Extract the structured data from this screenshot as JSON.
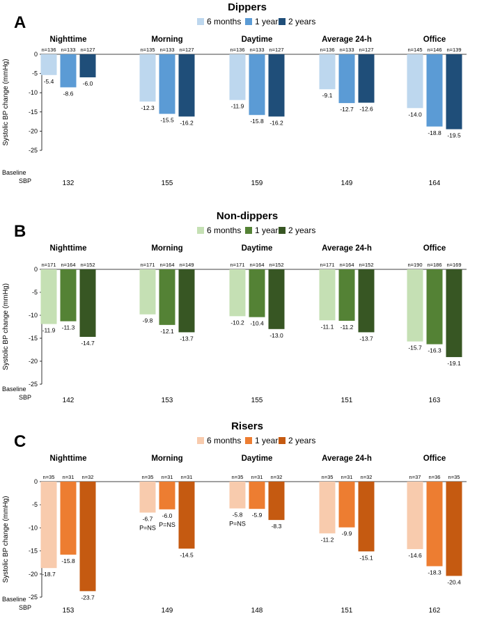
{
  "chart_data": [
    {
      "type": "bar",
      "panel": "A",
      "title": "Dippers",
      "ylabel": "Systolic BP change (mmHg)",
      "ylim": [
        -25,
        0
      ],
      "yticks": [
        "0",
        "-5",
        "-10",
        "-15",
        "-20",
        "-25"
      ],
      "legend": [
        "6 months",
        "1 year",
        "2 years"
      ],
      "colors": [
        "#bdd7ee",
        "#5b9bd5",
        "#1f4e79"
      ],
      "baseline_label": [
        "Baseline",
        "SBP"
      ],
      "groups": [
        {
          "label": "Nighttime",
          "n": [
            "n=136",
            "n=133",
            "n=127"
          ],
          "values": [
            -5.4,
            -8.6,
            -6.0
          ],
          "labels": [
            "-5.4",
            "-8.6",
            "-6.0"
          ],
          "baseline": "132"
        },
        {
          "label": "Morning",
          "n": [
            "n=135",
            "n=133",
            "n=127"
          ],
          "values": [
            -12.3,
            -15.5,
            -16.2
          ],
          "labels": [
            "-12.3",
            "-15.5",
            "-16.2"
          ],
          "baseline": "155"
        },
        {
          "label": "Daytime",
          "n": [
            "n=136",
            "n=133",
            "n=127"
          ],
          "values": [
            -11.9,
            -15.8,
            -16.2
          ],
          "labels": [
            "-11.9",
            "-15.8",
            "-16.2"
          ],
          "baseline": "159"
        },
        {
          "label": "Average 24-h",
          "n": [
            "n=136",
            "n=133",
            "n=127"
          ],
          "values": [
            -9.1,
            -12.7,
            -12.6
          ],
          "labels": [
            "-9.1",
            "-12.7",
            "-12.6"
          ],
          "baseline": "149"
        },
        {
          "label": "Office",
          "n": [
            "n=145",
            "n=146",
            "n=139"
          ],
          "values": [
            -14.0,
            -18.8,
            -19.5
          ],
          "labels": [
            "-14.0",
            "-18.8",
            "-19.5"
          ],
          "baseline": "164"
        }
      ]
    },
    {
      "type": "bar",
      "panel": "B",
      "title": "Non-dippers",
      "ylabel": "Systolic BP change (mmHg)",
      "ylim": [
        -25,
        0
      ],
      "yticks": [
        "0",
        "-5",
        "-10",
        "-15",
        "-20",
        "-25"
      ],
      "legend": [
        "6 months",
        "1 year",
        "2 years"
      ],
      "colors": [
        "#c5e0b4",
        "#548235",
        "#375623"
      ],
      "baseline_label": [
        "Baseline",
        "SBP"
      ],
      "groups": [
        {
          "label": "Nighttime",
          "n": [
            "n=171",
            "n=164",
            "n=152"
          ],
          "values": [
            -11.9,
            -11.3,
            -14.7
          ],
          "labels": [
            "-11.9",
            "-11.3",
            "-14.7"
          ],
          "baseline": "142"
        },
        {
          "label": "Morning",
          "n": [
            "n=171",
            "n=164",
            "n=149"
          ],
          "values": [
            -9.8,
            -12.1,
            -13.7
          ],
          "labels": [
            "-9.8",
            "-12.1",
            "-13.7"
          ],
          "baseline": "153"
        },
        {
          "label": "Daytime",
          "n": [
            "n=171",
            "n=164",
            "n=152"
          ],
          "values": [
            -10.2,
            -10.4,
            -13.0
          ],
          "labels": [
            "-10.2",
            "-10.4",
            "-13.0"
          ],
          "baseline": "155"
        },
        {
          "label": "Average 24-h",
          "n": [
            "n=171",
            "n=164",
            "n=152"
          ],
          "values": [
            -11.1,
            -11.2,
            -13.7
          ],
          "labels": [
            "-11.1",
            "-11.2",
            "-13.7"
          ],
          "baseline": "151"
        },
        {
          "label": "Office",
          "n": [
            "n=190",
            "n=186",
            "n=169"
          ],
          "values": [
            -15.7,
            -16.3,
            -19.1
          ],
          "labels": [
            "-15.7",
            "-16.3",
            "-19.1"
          ],
          "baseline": "163"
        }
      ]
    },
    {
      "type": "bar",
      "panel": "C",
      "title": "Risers",
      "ylabel": "Systolic BP change (mmHg)",
      "ylim": [
        -25,
        0
      ],
      "yticks": [
        "0",
        "-5",
        "-10",
        "-15",
        "-20",
        "-25"
      ],
      "legend": [
        "6 months",
        "1 year",
        "2 years"
      ],
      "colors": [
        "#f8cbad",
        "#ed7d31",
        "#c55a11"
      ],
      "baseline_label": [
        "Baseline",
        "SBP"
      ],
      "groups": [
        {
          "label": "Nighttime",
          "n": [
            "n=35",
            "n=31",
            "n=32"
          ],
          "values": [
            -18.7,
            -15.8,
            -23.7
          ],
          "labels": [
            "-18.7",
            "-15.8",
            "-23.7"
          ],
          "baseline": "153"
        },
        {
          "label": "Morning",
          "n": [
            "n=35",
            "n=31",
            "n=31"
          ],
          "values": [
            -6.7,
            -6.0,
            -14.5
          ],
          "labels": [
            "-6.7",
            "-6.0",
            "-14.5"
          ],
          "baseline": "149",
          "ns": [
            "P=NS",
            "P=NS",
            ""
          ]
        },
        {
          "label": "Daytime",
          "n": [
            "n=35",
            "n=31",
            "n=32"
          ],
          "values": [
            -5.8,
            -5.9,
            -8.3
          ],
          "labels": [
            "-5.8",
            "-5.9",
            "-8.3"
          ],
          "baseline": "148",
          "ns": [
            "P=NS",
            "",
            ""
          ]
        },
        {
          "label": "Average 24-h",
          "n": [
            "n=35",
            "n=31",
            "n=32"
          ],
          "values": [
            -11.2,
            -9.9,
            -15.1
          ],
          "labels": [
            "-11.2",
            "-9.9",
            "-15.1"
          ],
          "baseline": "151"
        },
        {
          "label": "Office",
          "n": [
            "n=37",
            "n=36",
            "n=35"
          ],
          "values": [
            -14.6,
            -18.3,
            -20.4
          ],
          "labels": [
            "-14.6",
            "-18.3",
            "-20.4"
          ],
          "baseline": "162"
        }
      ]
    }
  ]
}
